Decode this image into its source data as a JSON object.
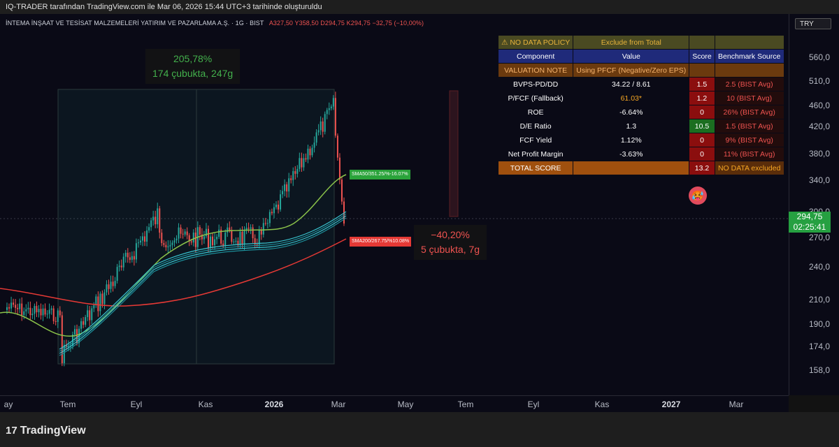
{
  "topbar": {
    "text": "IQ-TRADER tarafından TradingView.com ile Mar 06, 2026 15:44 UTC+3 tarihinde oluşturuldu"
  },
  "legend": {
    "symbol": "İNTEMA İNŞAAT VE TESİSAT MALZEMELERİ YATIRIM VE PAZARLAMA A.Ş. · 1G · BIST",
    "ohlc": "A327,50  Y358,50  D294,75  K294,75  −32,75 (−10,00%)"
  },
  "currency": "TRY",
  "current_price": {
    "price": "294,75",
    "countdown": "02:25:41",
    "color": "#26a041"
  },
  "price_axis": [
    "560,0",
    "510,0",
    "460,0",
    "420,0",
    "380,0",
    "340,0",
    "300,0",
    "270,0",
    "240,0",
    "210,0",
    "190,0",
    "174,0",
    "158,0"
  ],
  "time_axis": [
    {
      "label": "ay",
      "bold": false
    },
    {
      "label": "Tem",
      "bold": false
    },
    {
      "label": "Eyl",
      "bold": false
    },
    {
      "label": "Kas",
      "bold": false
    },
    {
      "label": "2026",
      "bold": true
    },
    {
      "label": "Mar",
      "bold": false
    },
    {
      "label": "May",
      "bold": false
    },
    {
      "label": "Tem",
      "bold": false
    },
    {
      "label": "Eyl",
      "bold": false
    },
    {
      "label": "Kas",
      "bold": false
    },
    {
      "label": "2027",
      "bold": true
    },
    {
      "label": "Mar",
      "bold": false
    }
  ],
  "range_up": {
    "percent": "205,78%",
    "bars": "174 çubukta, 247g"
  },
  "range_down": {
    "percent": "−40,20%",
    "bars": "5 çubukta, 7g"
  },
  "sma50_tag": "SMA50/351.25/%-16.07%",
  "sma200_tag": "SMA200/267.75/%10.08%",
  "score_table": {
    "policy": {
      "label": "⚠ NO DATA POLICY",
      "value": "Exclude from Total"
    },
    "headers": [
      "Component",
      "Value",
      "Score",
      "Benchmark Source"
    ],
    "valuation_note": {
      "label": "VALUATION NOTE",
      "value": "Using PFCF (Negative/Zero EPS)"
    },
    "rows": [
      {
        "component": "BVPS-PD/DD",
        "value": "34.22 / 8.61",
        "score": "1.5",
        "benchmark": "2.5 (BIST Avg)",
        "score_color": "red",
        "value_color": "white"
      },
      {
        "component": "P/FCF (Fallback)",
        "value": "61.03*",
        "score": "1.2",
        "benchmark": "10 (BIST Avg)",
        "score_color": "red",
        "value_color": "orange"
      },
      {
        "component": "ROE",
        "value": "-6.64%",
        "score": "0",
        "benchmark": "26% (BIST Avg)",
        "score_color": "red",
        "value_color": "white"
      },
      {
        "component": "D/E Ratio",
        "value": "1.3",
        "score": "10.5",
        "benchmark": "1.5 (BIST Avg)",
        "score_color": "green",
        "value_color": "white"
      },
      {
        "component": "FCF Yield",
        "value": "1.12%",
        "score": "0",
        "benchmark": "9% (BIST Avg)",
        "score_color": "red",
        "value_color": "white"
      },
      {
        "component": "Net Profit Margin",
        "value": "-3.63%",
        "score": "0",
        "benchmark": "11% (BIST Avg)",
        "score_color": "red",
        "value_color": "white"
      }
    ],
    "total": {
      "label": "TOTAL SCORE",
      "score": "13.2",
      "note": "NO DATA excluded"
    }
  },
  "emoji": "🥵",
  "brand": {
    "logo": "17",
    "name": "TradingView"
  }
}
